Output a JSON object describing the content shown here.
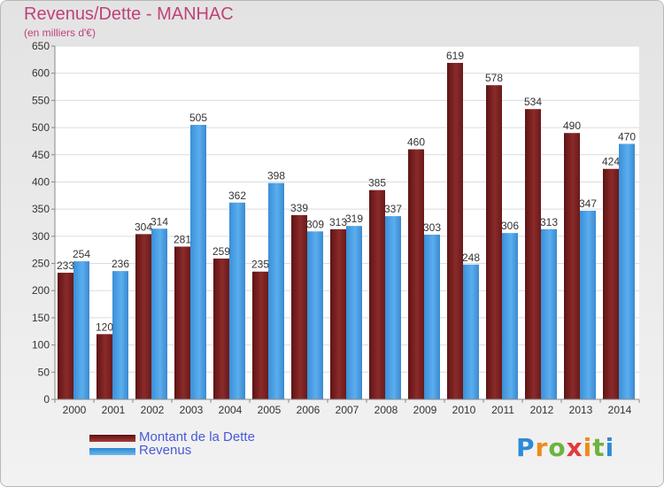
{
  "title": "Revenus/Dette - MANHAC",
  "subtitle": "(en milliers d'€)",
  "brand": "Proxiti",
  "colors": {
    "dette": "#8b2a2a",
    "revenus": "#4fa3e6",
    "title": "#c0427a",
    "legend_text": "#4a5ad8"
  },
  "chart_data": {
    "type": "bar",
    "title": "Revenus/Dette - MANHAC",
    "subtitle": "(en milliers d'€)",
    "categories": [
      "2000",
      "2001",
      "2002",
      "2003",
      "2004",
      "2005",
      "2006",
      "2007",
      "2008",
      "2009",
      "2010",
      "2011",
      "2012",
      "2013",
      "2014"
    ],
    "series": [
      {
        "name": "Montant de la Dette",
        "color": "#8b2a2a",
        "values": [
          233,
          120,
          304,
          281,
          259,
          235,
          339,
          313,
          385,
          460,
          619,
          578,
          534,
          490,
          424
        ]
      },
      {
        "name": "Revenus",
        "color": "#4fa3e6",
        "values": [
          254,
          236,
          314,
          505,
          362,
          398,
          309,
          319,
          337,
          303,
          248,
          306,
          313,
          347,
          470
        ]
      }
    ],
    "ylim": [
      0,
      650
    ],
    "yticks": [
      0,
      50,
      100,
      150,
      200,
      250,
      300,
      350,
      400,
      450,
      500,
      550,
      600,
      650
    ],
    "grid": true,
    "legend": "bottom-left",
    "data_labels": true
  }
}
